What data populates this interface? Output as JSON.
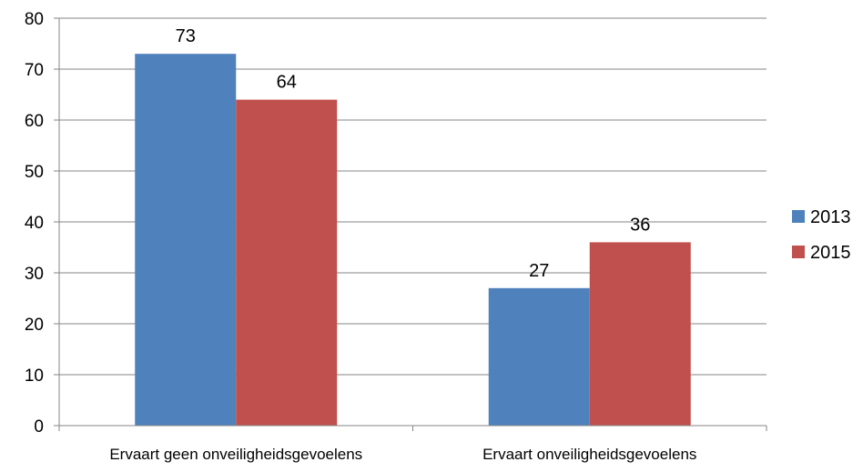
{
  "chart_data": {
    "type": "bar",
    "title": "",
    "xlabel": "",
    "ylabel": "",
    "categories": [
      "Ervaart geen onveiligheidsgevoelens",
      "Ervaart onveiligheidsgevoelens"
    ],
    "series": [
      {
        "name": "2013",
        "values": [
          73,
          27
        ],
        "color": "#4F81BD"
      },
      {
        "name": "2015",
        "values": [
          64,
          36
        ],
        "color": "#C0504D"
      }
    ],
    "ylim": [
      0,
      80
    ],
    "yticks": [
      0,
      10,
      20,
      30,
      40,
      50,
      60,
      70,
      80
    ],
    "grid": true,
    "legend": "right",
    "data_labels": true
  }
}
